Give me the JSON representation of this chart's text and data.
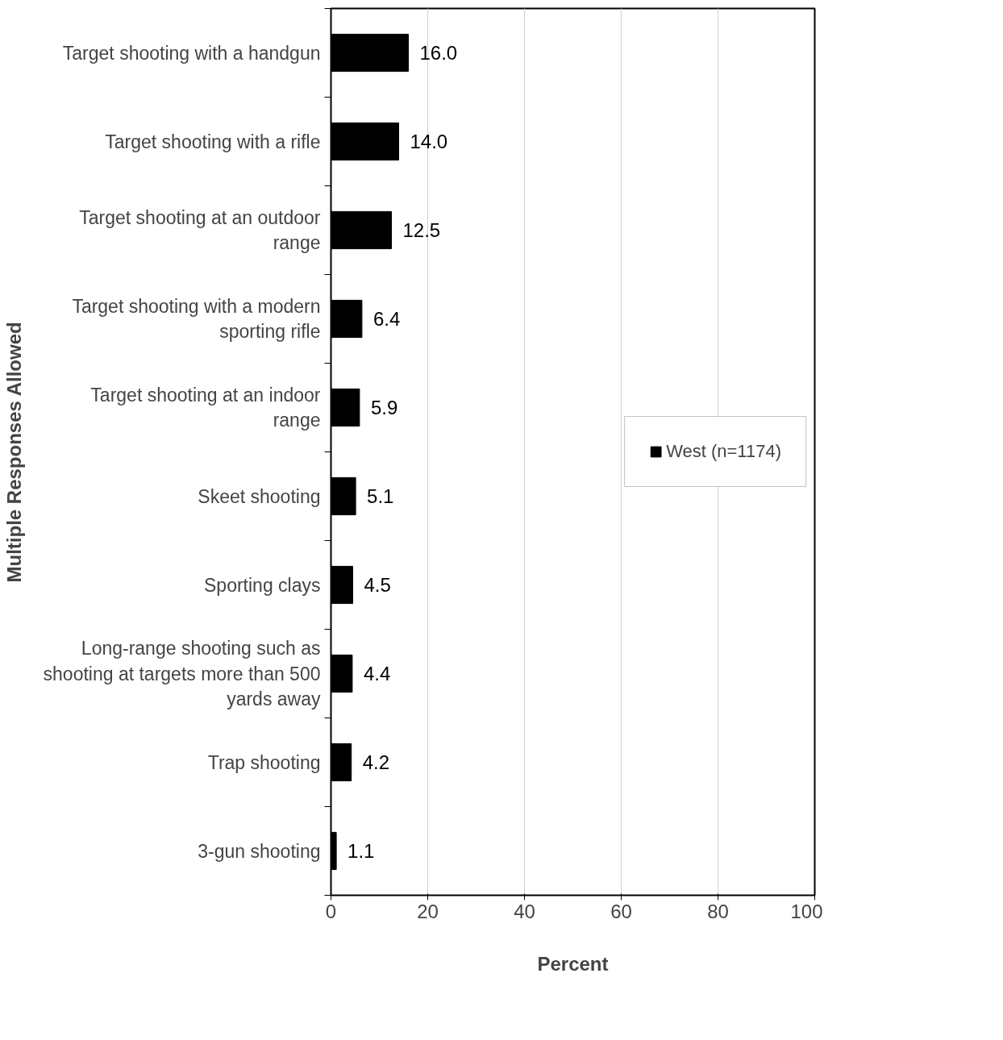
{
  "chart_data": {
    "type": "bar",
    "orientation": "horizontal",
    "xlabel": "Percent",
    "ylabel": "Multiple Responses Allowed",
    "categories": [
      "Target shooting with a handgun",
      "Target shooting with a rifle",
      "Target shooting at an outdoor range",
      "Target shooting with a modern sporting rifle",
      "Target shooting at an indoor range",
      "Skeet shooting",
      "Sporting clays",
      "Long-range shooting such as shooting at targets more than 500 yards away",
      "Trap shooting",
      "3-gun shooting"
    ],
    "series": [
      {
        "name": "West (n=1174)",
        "color": "#000000",
        "values": [
          16.0,
          14.0,
          12.5,
          6.4,
          5.9,
          5.1,
          4.5,
          4.4,
          4.2,
          1.1
        ],
        "value_labels": [
          "16.0",
          "14.0",
          "12.5",
          "6.4",
          "5.9",
          "5.1",
          "4.5",
          "4.4",
          "4.2",
          "1.1"
        ]
      }
    ],
    "xlim": [
      0,
      100
    ],
    "xticks": [
      0,
      20,
      40,
      60,
      80,
      100
    ],
    "grid": "x",
    "legend": "right"
  }
}
